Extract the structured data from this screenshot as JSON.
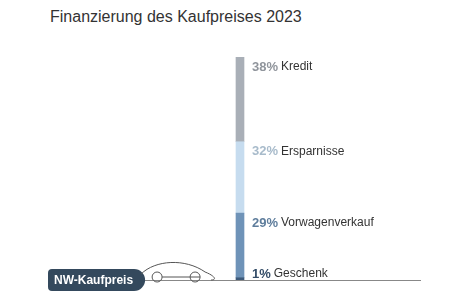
{
  "chart_data": {
    "type": "bar",
    "title": "Finanzierung des Kaufpreises 2023",
    "annotation": "NW-Kaufpreis",
    "categories": [
      null
    ],
    "stacked": true,
    "data_labels": true,
    "tick_labels": false,
    "grid": false,
    "ylim": [
      0,
      100
    ],
    "series": [
      {
        "name": "Geschenk",
        "color": "#3d5a7a",
        "values": [
          1
        ],
        "value_labels": [
          "1%"
        ]
      },
      {
        "name": "Vorwagenverkauf",
        "color": "#6f93b8",
        "values": [
          29
        ],
        "value_labels": [
          "29%"
        ]
      },
      {
        "name": "Ersparnisse",
        "color": "#c6dcef",
        "values": [
          32
        ],
        "value_labels": [
          "32%"
        ]
      },
      {
        "name": "Kredit",
        "color": "#a9afb7",
        "values": [
          38
        ],
        "value_labels": [
          "38%"
        ]
      }
    ]
  }
}
